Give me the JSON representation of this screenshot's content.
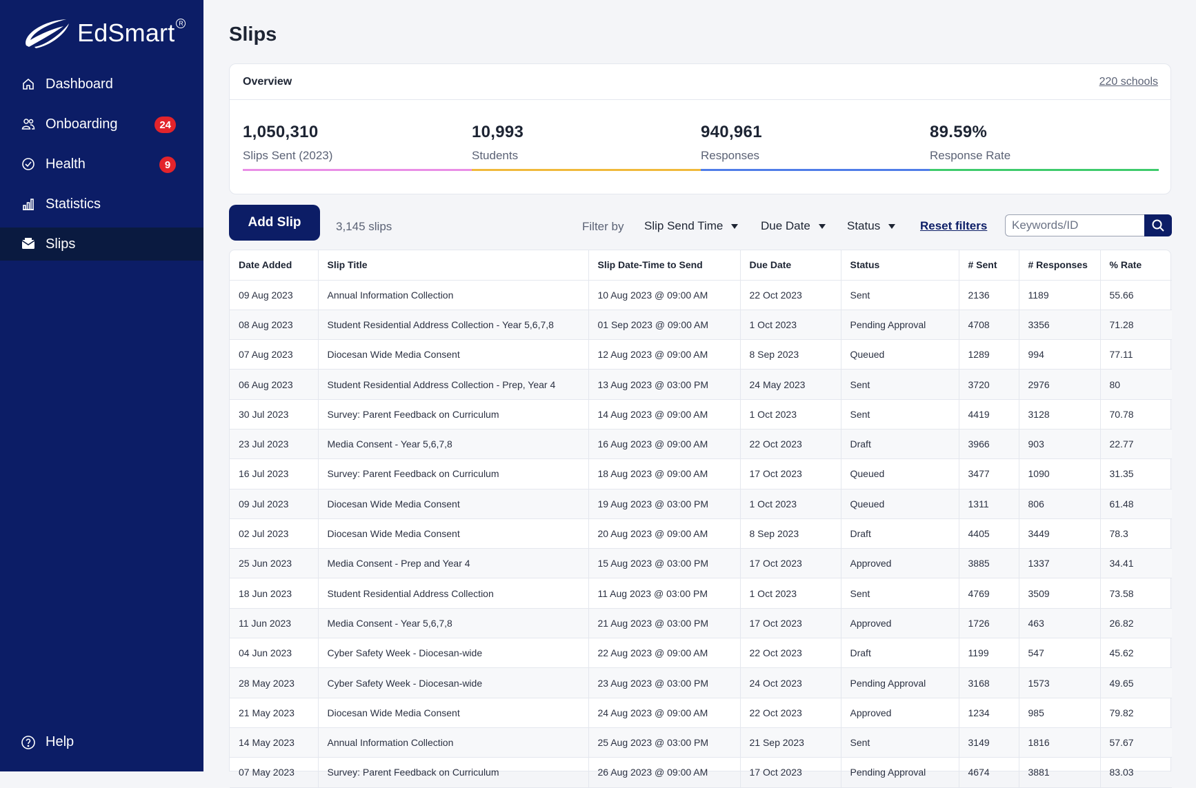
{
  "brand": {
    "name": "EdSmart",
    "reg_mark": "R",
    "accent": "#0c1d66"
  },
  "nav": {
    "items": [
      {
        "label": "Dashboard",
        "icon": "home-icon",
        "badge": null
      },
      {
        "label": "Onboarding",
        "icon": "users-icon",
        "badge": "24"
      },
      {
        "label": "Health",
        "icon": "check-circle-icon",
        "badge": "9"
      },
      {
        "label": "Statistics",
        "icon": "bar-chart-icon",
        "badge": null
      },
      {
        "label": "Slips",
        "icon": "envelope-icon",
        "badge": null,
        "active": true
      }
    ],
    "help_label": "Help"
  },
  "page": {
    "title": "Slips"
  },
  "overview": {
    "title": "Overview",
    "schools_link": "220 schools",
    "stats": [
      {
        "value": "1,050,310",
        "label": "Slips Sent (2023)",
        "color": "#e98de6"
      },
      {
        "value": "10,993",
        "label": "Students",
        "color": "#f0b93b"
      },
      {
        "value": "940,961",
        "label": "Responses",
        "color": "#4f7de8"
      },
      {
        "value": "89.59%",
        "label": "Response Rate",
        "color": "#3ecb6c"
      }
    ]
  },
  "toolbar": {
    "add_label": "Add Slip",
    "count": "3,145 slips",
    "filter_by": "Filter by",
    "filters": [
      "Slip Send Time",
      "Due Date",
      "Status"
    ],
    "reset_label": "Reset filters",
    "search_placeholder": "Keywords/ID"
  },
  "table": {
    "columns": [
      "Date Added",
      "Slip Title",
      "Slip Date-Time to Send",
      "Due Date",
      "Status",
      "# Sent",
      "# Responses",
      "% Rate"
    ],
    "rows": [
      [
        "09 Aug 2023",
        "Annual Information Collection",
        "10 Aug 2023 @ 09:00 AM",
        "22 Oct 2023",
        "Sent",
        "2136",
        "1189",
        "55.66"
      ],
      [
        "08 Aug 2023",
        "Student Residential Address Collection - Year 5,6,7,8",
        "01 Sep 2023 @ 09:00 AM",
        "1 Oct 2023",
        "Pending Approval",
        "4708",
        "3356",
        "71.28"
      ],
      [
        "07 Aug 2023",
        "Diocesan Wide Media Consent",
        "12 Aug 2023 @ 09:00 AM",
        "8 Sep 2023",
        "Queued",
        "1289",
        "994",
        "77.11"
      ],
      [
        "06 Aug 2023",
        "Student Residential Address Collection - Prep, Year 4",
        "13 Aug 2023 @ 03:00 PM",
        "24 May 2023",
        "Sent",
        "3720",
        "2976",
        "80"
      ],
      [
        "30 Jul 2023",
        "Survey: Parent Feedback on Curriculum",
        "14 Aug 2023 @ 09:00 AM",
        "1 Oct 2023",
        "Sent",
        "4419",
        "3128",
        "70.78"
      ],
      [
        "23 Jul 2023",
        "Media Consent - Year 5,6,7,8",
        "16 Aug 2023 @ 09:00 AM",
        "22 Oct 2023",
        "Draft",
        "3966",
        "903",
        "22.77"
      ],
      [
        "16 Jul 2023",
        "Survey: Parent Feedback on Curriculum",
        "18 Aug 2023 @ 09:00 AM",
        "17 Oct 2023",
        "Queued",
        "3477",
        "1090",
        "31.35"
      ],
      [
        "09 Jul 2023",
        "Diocesan Wide Media Consent",
        "19 Aug 2023 @ 03:00 PM",
        "1 Oct 2023",
        "Queued",
        "1311",
        "806",
        "61.48"
      ],
      [
        "02 Jul 2023",
        "Diocesan Wide Media Consent",
        "20 Aug 2023 @ 09:00 AM",
        "8 Sep 2023",
        "Draft",
        "4405",
        "3449",
        "78.3"
      ],
      [
        "25 Jun 2023",
        "Media Consent - Prep and Year 4",
        "15 Aug 2023 @ 03:00 PM",
        "17 Oct 2023",
        "Approved",
        "3885",
        "1337",
        "34.41"
      ],
      [
        "18 Jun 2023",
        "Student Residential Address Collection",
        "11 Aug 2023 @ 03:00 PM",
        "1 Oct 2023",
        "Sent",
        "4769",
        "3509",
        "73.58"
      ],
      [
        "11 Jun 2023",
        "Media Consent - Year 5,6,7,8",
        "21 Aug 2023 @ 03:00 PM",
        "17 Oct 2023",
        "Approved",
        "1726",
        "463",
        "26.82"
      ],
      [
        "04 Jun 2023",
        "Cyber Safety Week - Diocesan-wide",
        "22 Aug 2023 @ 09:00 AM",
        "22 Oct 2023",
        "Draft",
        "1199",
        "547",
        "45.62"
      ],
      [
        "28 May 2023",
        "Cyber Safety Week - Diocesan-wide",
        "23 Aug 2023 @ 03:00 PM",
        "24 Oct 2023",
        "Pending Approval",
        "3168",
        "1573",
        "49.65"
      ],
      [
        "21 May 2023",
        "Diocesan Wide Media Consent",
        "24 Aug 2023 @ 09:00 AM",
        "22 Oct 2023",
        "Approved",
        "1234",
        "985",
        "79.82"
      ],
      [
        "14 May 2023",
        "Annual Information Collection",
        "25 Aug 2023 @ 03:00 PM",
        "21 Sep 2023",
        "Sent",
        "3149",
        "1816",
        "57.67"
      ],
      [
        "07 May 2023",
        "Survey: Parent Feedback on Curriculum",
        "26 Aug 2023 @ 09:00 AM",
        "17 Oct 2023",
        "Pending Approval",
        "4674",
        "3881",
        "83.03"
      ]
    ]
  }
}
